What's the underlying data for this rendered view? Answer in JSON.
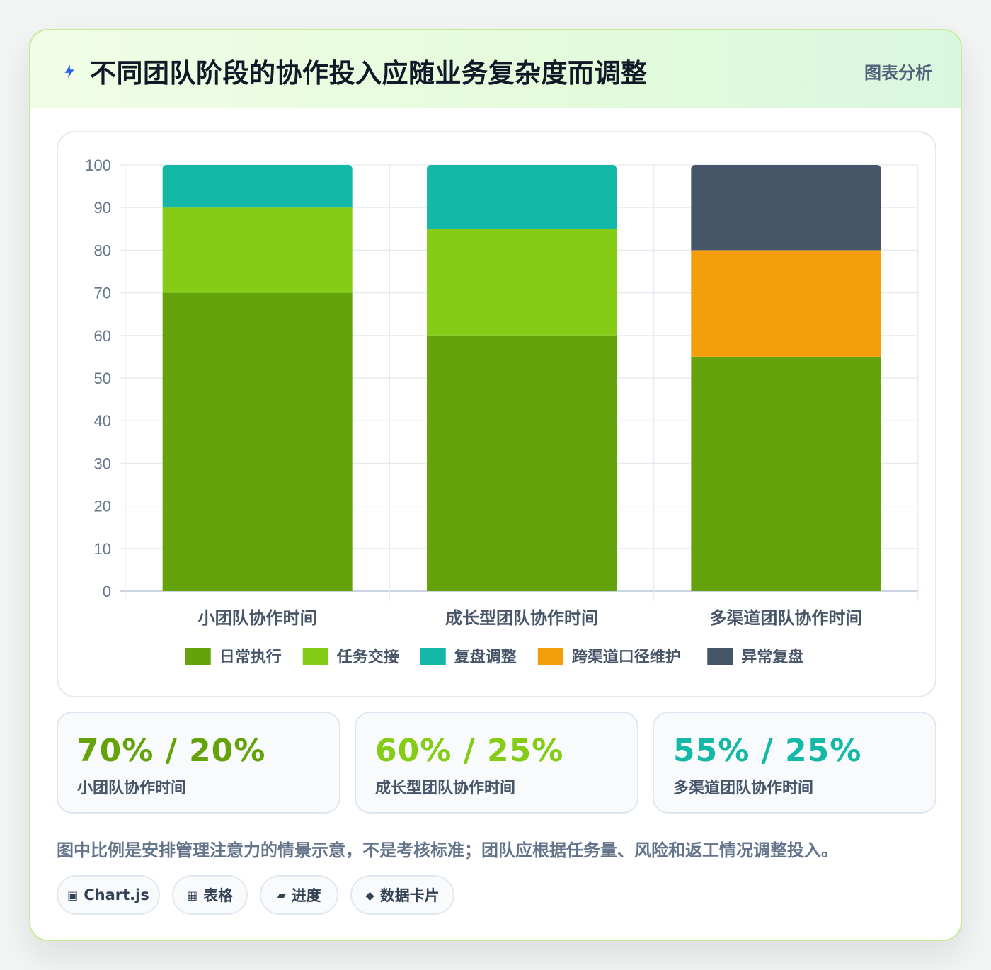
{
  "header": {
    "icon": "lightning-bolt-icon",
    "title": "不同团队阶段的协作投入应随业务复杂度而调整",
    "tag": "图表分析"
  },
  "chart_data": {
    "type": "bar",
    "stacked": true,
    "categories": [
      "小团队协作时间",
      "成长型团队协作时间",
      "多渠道团队协作时间"
    ],
    "series": [
      {
        "name": "日常执行",
        "color": "#65a30d",
        "values": [
          70,
          60,
          55
        ]
      },
      {
        "name": "任务交接",
        "color": "#84cc16",
        "values": [
          20,
          25,
          0
        ]
      },
      {
        "name": "复盘调整",
        "color": "#14b8a6",
        "values": [
          10,
          15,
          0
        ]
      },
      {
        "name": "跨渠道口径维护",
        "color": "#f59e0b",
        "values": [
          0,
          0,
          25
        ]
      },
      {
        "name": "异常复盘",
        "color": "#475569",
        "values": [
          0,
          0,
          20
        ]
      }
    ],
    "yticks": [
      0,
      10,
      20,
      30,
      40,
      50,
      60,
      70,
      80,
      90,
      100
    ],
    "ylim": [
      0,
      100
    ],
    "grid": true,
    "legend": "bottom-center"
  },
  "stats": [
    {
      "value": "70% / 20%",
      "label": "小团队协作时间",
      "color": "#65a30d"
    },
    {
      "value": "60% / 25%",
      "label": "成长型团队协作时间",
      "color": "#84cc16"
    },
    {
      "value": "55% / 25%",
      "label": "多渠道团队协作时间",
      "color": "#14b8a6"
    }
  ],
  "note": "图中比例是安排管理注意力的情景示意，不是考核标准；团队应根据任务量、风险和返工情况调整投入。",
  "chips": [
    {
      "icon": "chart-icon",
      "glyph": "▣",
      "label": "Chart.js"
    },
    {
      "icon": "table-icon",
      "glyph": "▦",
      "label": "表格"
    },
    {
      "icon": "progress-icon",
      "glyph": "▰",
      "label": "进度"
    },
    {
      "icon": "diamond-icon",
      "glyph": "◆",
      "label": "数据卡片"
    }
  ]
}
